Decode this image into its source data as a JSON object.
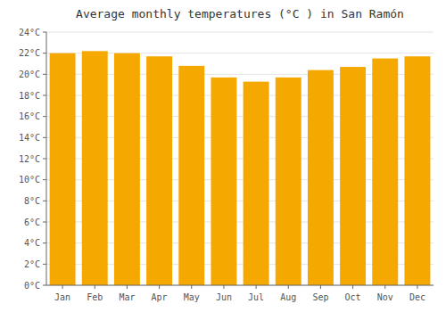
{
  "chart_data": {
    "type": "bar",
    "title": "Average monthly temperatures (°C ) in San Ramón",
    "categories": [
      "Jan",
      "Feb",
      "Mar",
      "Apr",
      "May",
      "Jun",
      "Jul",
      "Aug",
      "Sep",
      "Oct",
      "Nov",
      "Dec"
    ],
    "values": [
      22.0,
      22.2,
      22.0,
      21.7,
      20.8,
      19.7,
      19.3,
      19.7,
      20.4,
      20.7,
      21.5,
      21.7
    ],
    "color": "#F5A800",
    "ylim": [
      0,
      24
    ],
    "yticks": [
      {
        "value": 0,
        "label": "0°C"
      },
      {
        "value": 2,
        "label": "2°C"
      },
      {
        "value": 4,
        "label": "4°C"
      },
      {
        "value": 6,
        "label": "6°C"
      },
      {
        "value": 8,
        "label": "8°C"
      },
      {
        "value": 10,
        "label": "10°C"
      },
      {
        "value": 12,
        "label": "12°C"
      },
      {
        "value": 14,
        "label": "14°C"
      },
      {
        "value": 16,
        "label": "16°C"
      },
      {
        "value": 18,
        "label": "18°C"
      },
      {
        "value": 20,
        "label": "20°C"
      },
      {
        "value": 22,
        "label": "22°C"
      },
      {
        "value": 24,
        "label": "24°C"
      }
    ],
    "grid": true
  }
}
